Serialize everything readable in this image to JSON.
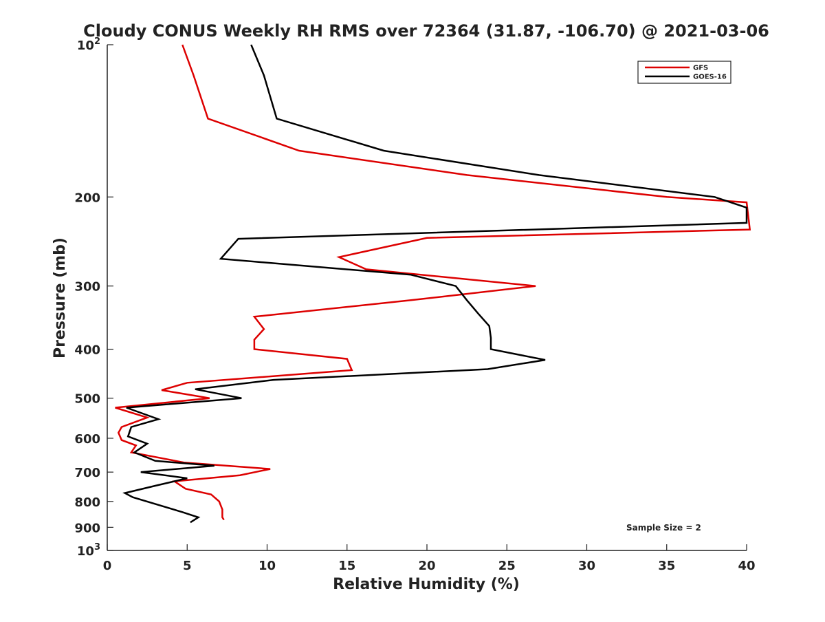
{
  "chart_data": {
    "type": "line",
    "title": "Cloudy CONUS Weekly RH RMS over 72364 (31.87, -106.70) @ 2021-03-06",
    "xlabel": "Relative Humidity (%)",
    "ylabel": "Pressure (mb)",
    "xlim": [
      0,
      40
    ],
    "ylim": [
      100,
      1000
    ],
    "y_scale": "log",
    "y_inverted": true,
    "grid": false,
    "legend_position": "top-right",
    "x_ticks": [
      0,
      5,
      10,
      15,
      20,
      25,
      30,
      35,
      40
    ],
    "x_tick_labels": [
      "0",
      "5",
      "10",
      "15",
      "20",
      "25",
      "30",
      "35",
      "40"
    ],
    "y_ticks": [
      100,
      200,
      300,
      400,
      500,
      600,
      700,
      800,
      900,
      1000
    ],
    "y_tick_labels": [
      {
        "base": "10",
        "exp": "2"
      },
      {
        "base": "200",
        "exp": ""
      },
      {
        "base": "300",
        "exp": ""
      },
      {
        "base": "400",
        "exp": ""
      },
      {
        "base": "500",
        "exp": ""
      },
      {
        "base": "600",
        "exp": ""
      },
      {
        "base": "700",
        "exp": ""
      },
      {
        "base": "800",
        "exp": ""
      },
      {
        "base": "900",
        "exp": ""
      },
      {
        "base": "10",
        "exp": "3"
      }
    ],
    "annotation": "Sample Size = 2",
    "series": [
      {
        "name": "GFS",
        "color": "#dd0000",
        "points": [
          {
            "x": 4.7,
            "p": 100
          },
          {
            "x": 5.4,
            "p": 115
          },
          {
            "x": 6.3,
            "p": 140
          },
          {
            "x": 12.0,
            "p": 162
          },
          {
            "x": 22.5,
            "p": 181
          },
          {
            "x": 35.0,
            "p": 200
          },
          {
            "x": 40.0,
            "p": 205
          },
          {
            "x": 40.2,
            "p": 232
          },
          {
            "x": 20.0,
            "p": 241
          },
          {
            "x": 14.5,
            "p": 263
          },
          {
            "x": 16.2,
            "p": 278
          },
          {
            "x": 26.8,
            "p": 300
          },
          {
            "x": 19.0,
            "p": 320
          },
          {
            "x": 9.2,
            "p": 345
          },
          {
            "x": 9.8,
            "p": 365
          },
          {
            "x": 9.2,
            "p": 383
          },
          {
            "x": 9.2,
            "p": 400
          },
          {
            "x": 15.0,
            "p": 418
          },
          {
            "x": 15.3,
            "p": 440
          },
          {
            "x": 5.0,
            "p": 466
          },
          {
            "x": 3.4,
            "p": 482
          },
          {
            "x": 6.4,
            "p": 500
          },
          {
            "x": 0.5,
            "p": 522
          },
          {
            "x": 2.5,
            "p": 546
          },
          {
            "x": 0.9,
            "p": 570
          },
          {
            "x": 0.7,
            "p": 585
          },
          {
            "x": 0.9,
            "p": 605
          },
          {
            "x": 1.8,
            "p": 620
          },
          {
            "x": 1.5,
            "p": 640
          },
          {
            "x": 4.8,
            "p": 670
          },
          {
            "x": 10.2,
            "p": 690
          },
          {
            "x": 8.3,
            "p": 710
          },
          {
            "x": 4.2,
            "p": 730
          },
          {
            "x": 4.9,
            "p": 755
          },
          {
            "x": 6.5,
            "p": 775
          },
          {
            "x": 7.0,
            "p": 800
          },
          {
            "x": 7.2,
            "p": 830
          },
          {
            "x": 7.2,
            "p": 860
          },
          {
            "x": 7.3,
            "p": 870
          }
        ]
      },
      {
        "name": "GOES-16",
        "color": "#000000",
        "points": [
          {
            "x": 9.0,
            "p": 100
          },
          {
            "x": 9.8,
            "p": 115
          },
          {
            "x": 10.6,
            "p": 140
          },
          {
            "x": 17.3,
            "p": 162
          },
          {
            "x": 27.0,
            "p": 181
          },
          {
            "x": 38.0,
            "p": 200
          },
          {
            "x": 40.0,
            "p": 210
          },
          {
            "x": 40.0,
            "p": 225
          },
          {
            "x": 8.2,
            "p": 242
          },
          {
            "x": 7.1,
            "p": 265
          },
          {
            "x": 19.0,
            "p": 285
          },
          {
            "x": 21.8,
            "p": 300
          },
          {
            "x": 22.5,
            "p": 320
          },
          {
            "x": 23.2,
            "p": 340
          },
          {
            "x": 23.9,
            "p": 360
          },
          {
            "x": 24.0,
            "p": 380
          },
          {
            "x": 24.0,
            "p": 400
          },
          {
            "x": 27.4,
            "p": 420
          },
          {
            "x": 23.8,
            "p": 438
          },
          {
            "x": 10.4,
            "p": 460
          },
          {
            "x": 5.5,
            "p": 480
          },
          {
            "x": 8.4,
            "p": 500
          },
          {
            "x": 1.2,
            "p": 522
          },
          {
            "x": 3.2,
            "p": 550
          },
          {
            "x": 1.5,
            "p": 570
          },
          {
            "x": 1.3,
            "p": 595
          },
          {
            "x": 2.5,
            "p": 615
          },
          {
            "x": 1.7,
            "p": 640
          },
          {
            "x": 3.0,
            "p": 665
          },
          {
            "x": 6.7,
            "p": 680
          },
          {
            "x": 2.1,
            "p": 700
          },
          {
            "x": 5.0,
            "p": 720
          },
          {
            "x": 3.0,
            "p": 745
          },
          {
            "x": 1.1,
            "p": 770
          },
          {
            "x": 1.6,
            "p": 785
          },
          {
            "x": 4.7,
            "p": 840
          },
          {
            "x": 5.7,
            "p": 860
          },
          {
            "x": 5.2,
            "p": 880
          }
        ]
      }
    ]
  }
}
